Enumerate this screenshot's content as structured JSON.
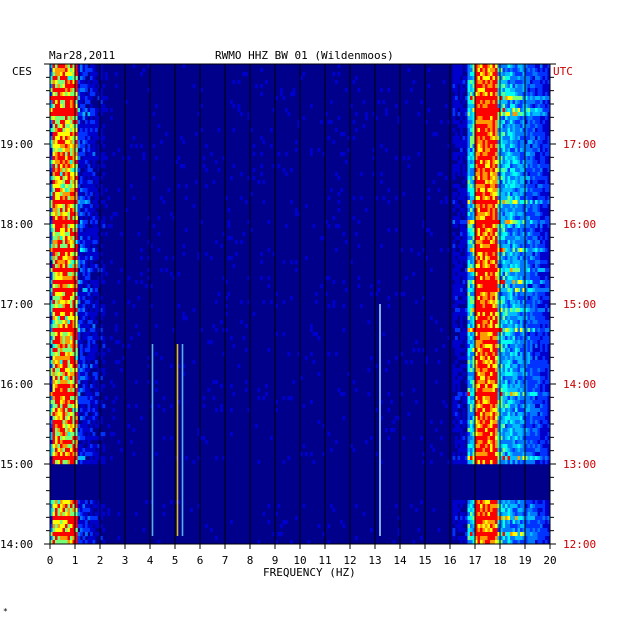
{
  "header": {
    "date": "Mar28,2011",
    "station": "RWMO HHZ BW 01 (Wildenmoos)"
  },
  "left_axis": {
    "tz": "CES",
    "ticks": [
      "14:00",
      "15:00",
      "16:00",
      "17:00",
      "18:00",
      "19:00"
    ]
  },
  "right_axis": {
    "tz": "UTC",
    "ticks": [
      "12:00",
      "13:00",
      "14:00",
      "15:00",
      "16:00",
      "17:00"
    ]
  },
  "footer_mark": "*",
  "chart_data": {
    "type": "heatmap",
    "xlabel": "FREQUENCY (HZ)",
    "x_ticks": [
      "0",
      "1",
      "2",
      "3",
      "4",
      "5",
      "6",
      "7",
      "8",
      "9",
      "10",
      "11",
      "12",
      "13",
      "14",
      "15",
      "16",
      "17",
      "18",
      "19",
      "20"
    ],
    "xlim": [
      0,
      20
    ],
    "y_range_local": [
      "14:00",
      "20:00"
    ],
    "y_range_utc": [
      "12:00",
      "18:00"
    ],
    "colormap": [
      "#00008b",
      "#0000cd",
      "#0033ff",
      "#0077ff",
      "#00bbff",
      "#00ffee",
      "#77ff77",
      "#ffff00",
      "#ff9900",
      "#ff0000"
    ],
    "background_color": "#00008b",
    "grid_color": "#000000",
    "energy_bands": [
      {
        "from_hz": 0.2,
        "to_hz": 1.0,
        "level": "high"
      },
      {
        "from_hz": 16.8,
        "to_hz": 20,
        "level": "high",
        "peak_hz": 17.4
      }
    ],
    "gap_local": [
      "14:33",
      "15:00"
    ],
    "spectral_lines_hz": [
      4.1,
      5.1,
      5.3,
      13.2
    ]
  }
}
